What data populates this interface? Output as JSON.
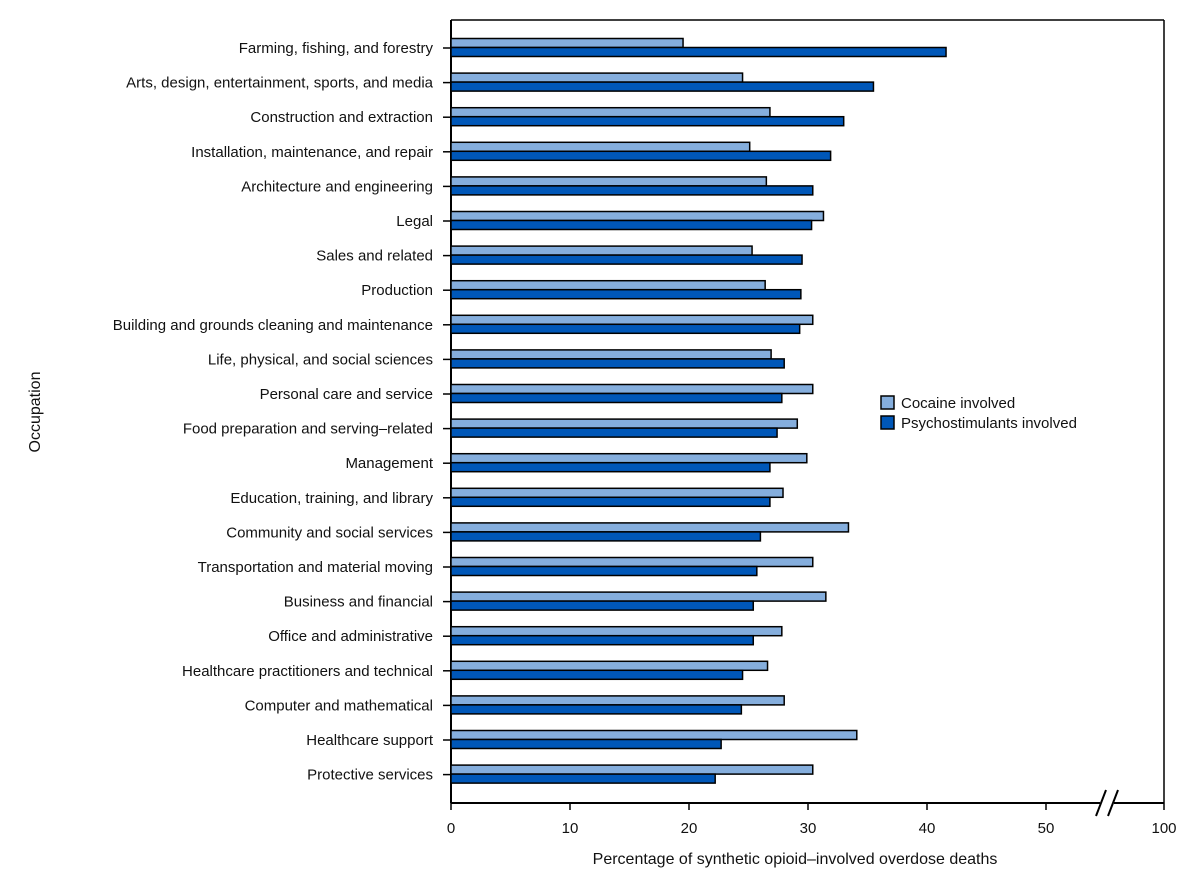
{
  "chart_data": {
    "type": "bar",
    "orientation": "horizontal",
    "xlabel": "Percentage of synthetic opioid–involved overdose deaths",
    "ylabel": "Occupation",
    "xlim": [
      0,
      100
    ],
    "axis_break": [
      55,
      95
    ],
    "xticks": [
      0,
      10,
      20,
      30,
      40,
      50,
      100
    ],
    "grid": false,
    "legend_position": "right",
    "categories": [
      "Farming, fishing, and forestry",
      "Arts, design, entertainment, sports, and media",
      "Construction and extraction",
      "Installation, maintenance, and repair",
      "Architecture and engineering",
      "Legal",
      "Sales and related",
      "Production",
      "Building and grounds cleaning and maintenance",
      "Life, physical, and social sciences",
      "Personal care and service",
      "Food preparation and serving–related",
      "Management",
      "Education, training, and library",
      "Community and social services",
      "Transportation and material moving",
      "Business and financial",
      "Office and administrative",
      "Healthcare practitioners and technical",
      "Computer and mathematical",
      "Healthcare support",
      "Protective services"
    ],
    "series": [
      {
        "name": "Cocaine involved",
        "color": "#85aedd",
        "values": [
          19.5,
          24.5,
          26.8,
          25.1,
          26.5,
          31.3,
          25.3,
          26.4,
          30.4,
          26.9,
          30.4,
          29.1,
          29.9,
          27.9,
          33.4,
          30.4,
          31.5,
          27.8,
          26.6,
          28.0,
          34.1,
          30.4
        ]
      },
      {
        "name": "Psychostimulants involved",
        "color": "#0057b8",
        "values": [
          41.6,
          35.5,
          33.0,
          31.9,
          30.4,
          30.3,
          29.5,
          29.4,
          29.3,
          28.0,
          27.8,
          27.4,
          26.8,
          26.8,
          26.0,
          25.7,
          25.4,
          25.4,
          24.5,
          24.4,
          22.7,
          22.2
        ]
      }
    ]
  }
}
